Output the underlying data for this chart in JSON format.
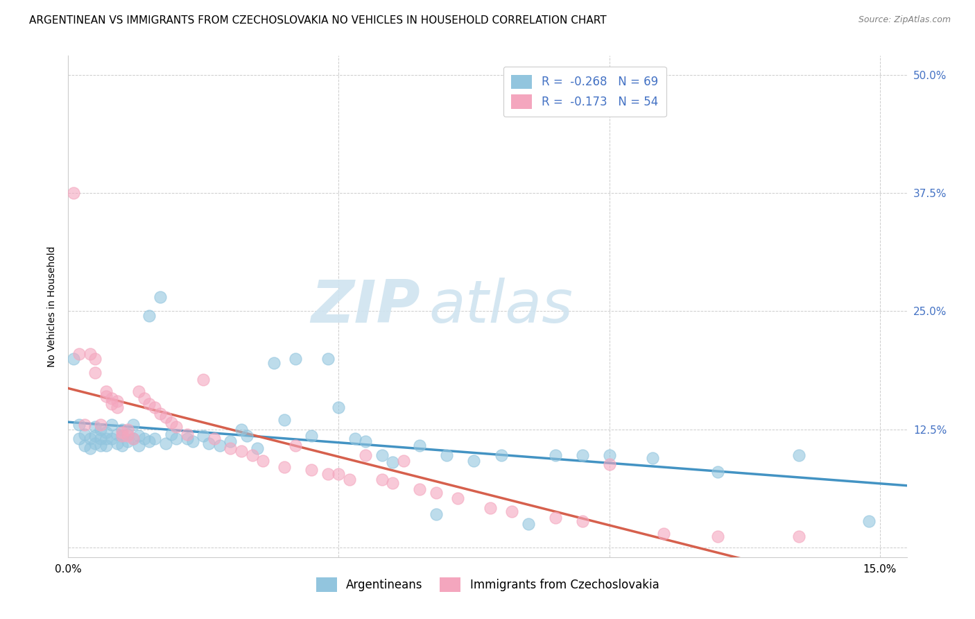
{
  "title": "ARGENTINEAN VS IMMIGRANTS FROM CZECHOSLOVAKIA NO VEHICLES IN HOUSEHOLD CORRELATION CHART",
  "source": "Source: ZipAtlas.com",
  "ylabel": "No Vehicles in Household",
  "xlim": [
    0.0,
    0.155
  ],
  "ylim": [
    -0.01,
    0.52
  ],
  "argentineans_R": -0.268,
  "argentineans_N": 69,
  "czechoslovakia_R": -0.173,
  "czechoslovakia_N": 54,
  "color_blue": "#92c5de",
  "color_pink": "#f4a6be",
  "color_line_blue": "#4393c3",
  "color_line_pink": "#d6604d",
  "watermark_zip": "ZIP",
  "watermark_atlas": "atlas",
  "legend_label_blue": "Argentineans",
  "legend_label_pink": "Immigrants from Czechoslovakia",
  "background_color": "#ffffff",
  "grid_color": "#cccccc",
  "legend_text_color": "#4472c4",
  "title_fontsize": 11,
  "axis_label_fontsize": 10,
  "tick_fontsize": 11,
  "right_tick_color": "#4472c4",
  "arg_x": [
    0.001,
    0.002,
    0.002,
    0.003,
    0.003,
    0.004,
    0.004,
    0.005,
    0.005,
    0.005,
    0.006,
    0.006,
    0.006,
    0.007,
    0.007,
    0.007,
    0.008,
    0.008,
    0.009,
    0.009,
    0.01,
    0.01,
    0.01,
    0.011,
    0.011,
    0.012,
    0.012,
    0.013,
    0.013,
    0.014,
    0.015,
    0.015,
    0.016,
    0.017,
    0.018,
    0.019,
    0.02,
    0.022,
    0.023,
    0.025,
    0.026,
    0.028,
    0.03,
    0.032,
    0.033,
    0.035,
    0.038,
    0.04,
    0.042,
    0.045,
    0.048,
    0.05,
    0.053,
    0.055,
    0.058,
    0.06,
    0.065,
    0.068,
    0.07,
    0.075,
    0.08,
    0.085,
    0.09,
    0.095,
    0.1,
    0.108,
    0.12,
    0.135,
    0.148
  ],
  "arg_y": [
    0.2,
    0.13,
    0.115,
    0.12,
    0.108,
    0.115,
    0.105,
    0.128,
    0.118,
    0.11,
    0.125,
    0.115,
    0.108,
    0.122,
    0.115,
    0.108,
    0.13,
    0.115,
    0.12,
    0.11,
    0.125,
    0.118,
    0.108,
    0.12,
    0.112,
    0.13,
    0.115,
    0.118,
    0.108,
    0.115,
    0.245,
    0.112,
    0.115,
    0.265,
    0.11,
    0.12,
    0.115,
    0.115,
    0.112,
    0.118,
    0.11,
    0.108,
    0.112,
    0.125,
    0.118,
    0.105,
    0.195,
    0.135,
    0.2,
    0.118,
    0.2,
    0.148,
    0.115,
    0.112,
    0.098,
    0.09,
    0.108,
    0.035,
    0.098,
    0.092,
    0.098,
    0.025,
    0.098,
    0.098,
    0.098,
    0.095,
    0.08,
    0.098,
    0.028
  ],
  "czech_x": [
    0.001,
    0.002,
    0.003,
    0.004,
    0.005,
    0.005,
    0.006,
    0.007,
    0.007,
    0.008,
    0.008,
    0.009,
    0.009,
    0.01,
    0.01,
    0.011,
    0.011,
    0.012,
    0.013,
    0.014,
    0.015,
    0.016,
    0.017,
    0.018,
    0.019,
    0.02,
    0.022,
    0.025,
    0.027,
    0.03,
    0.032,
    0.034,
    0.036,
    0.04,
    0.042,
    0.045,
    0.048,
    0.05,
    0.052,
    0.055,
    0.058,
    0.06,
    0.062,
    0.065,
    0.068,
    0.072,
    0.078,
    0.082,
    0.09,
    0.095,
    0.1,
    0.11,
    0.12,
    0.135
  ],
  "czech_y": [
    0.375,
    0.205,
    0.13,
    0.205,
    0.185,
    0.2,
    0.13,
    0.165,
    0.16,
    0.158,
    0.152,
    0.155,
    0.148,
    0.122,
    0.118,
    0.125,
    0.118,
    0.115,
    0.165,
    0.158,
    0.152,
    0.148,
    0.142,
    0.138,
    0.132,
    0.128,
    0.12,
    0.178,
    0.115,
    0.105,
    0.102,
    0.098,
    0.092,
    0.085,
    0.108,
    0.082,
    0.078,
    0.078,
    0.072,
    0.098,
    0.072,
    0.068,
    0.092,
    0.062,
    0.058,
    0.052,
    0.042,
    0.038,
    0.032,
    0.028,
    0.088,
    0.015,
    0.012,
    0.012
  ]
}
